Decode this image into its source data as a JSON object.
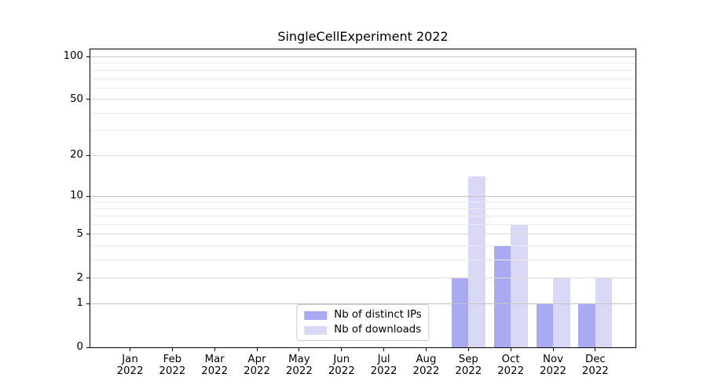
{
  "chart_data": {
    "type": "bar",
    "title": "SingleCellExperiment 2022",
    "year_label": "2022",
    "categories": [
      "Jan",
      "Feb",
      "Mar",
      "Apr",
      "May",
      "Jun",
      "Jul",
      "Aug",
      "Sep",
      "Oct",
      "Nov",
      "Dec"
    ],
    "series": [
      {
        "name": "Nb of distinct IPs",
        "color": "#a9a9f4",
        "values": [
          0,
          0,
          0,
          0,
          0,
          0,
          0,
          0,
          2,
          4,
          1,
          1
        ]
      },
      {
        "name": "Nb of downloads",
        "color": "#d9d9f7",
        "values": [
          0,
          0,
          0,
          0,
          0,
          0,
          0,
          0,
          14,
          6,
          2,
          2
        ]
      }
    ],
    "yscale": "log1p",
    "ylim": [
      0,
      112
    ],
    "yticks": [
      0,
      1,
      2,
      5,
      10,
      20,
      50,
      100
    ],
    "decade_ticks": [
      1,
      10,
      100
    ],
    "minor_ticks": [
      3,
      4,
      6,
      7,
      8,
      9,
      30,
      40,
      60,
      70,
      80,
      90
    ],
    "grid": "on",
    "legend_position": "lower center"
  }
}
